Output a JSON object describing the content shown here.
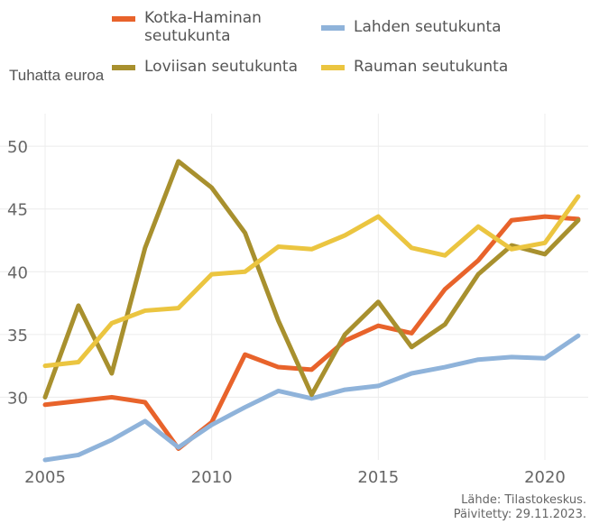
{
  "chart_data": {
    "type": "line",
    "y_label": "Tuhatta euroa",
    "x": [
      2005,
      2006,
      2007,
      2008,
      2009,
      2010,
      2011,
      2012,
      2013,
      2014,
      2015,
      2016,
      2017,
      2018,
      2019,
      2020,
      2021
    ],
    "series": [
      {
        "name": "Kotka-Haminan seutukunta",
        "color": "#e8632b",
        "values": [
          29.4,
          29.7,
          30.0,
          29.6,
          25.9,
          28.0,
          33.4,
          32.4,
          32.2,
          34.5,
          35.7,
          35.1,
          38.6,
          40.9,
          44.1,
          44.4,
          44.2
        ]
      },
      {
        "name": "Lahden seutukunta",
        "color": "#8fb3da",
        "values": [
          25.0,
          25.4,
          26.6,
          28.1,
          26.0,
          27.8,
          29.2,
          30.5,
          29.9,
          30.6,
          30.9,
          31.9,
          32.4,
          33.0,
          33.2,
          33.1,
          34.9
        ]
      },
      {
        "name": "Loviisan seutukunta",
        "color": "#a8902e",
        "values": [
          30.0,
          37.3,
          31.9,
          41.9,
          48.8,
          46.7,
          43.1,
          36.1,
          30.2,
          35.0,
          37.6,
          34.0,
          35.8,
          39.8,
          42.1,
          41.4,
          44.1
        ]
      },
      {
        "name": "Rauman seutukunta",
        "color": "#ebc540",
        "values": [
          32.5,
          32.8,
          35.9,
          36.9,
          37.1,
          39.8,
          40.0,
          42.0,
          41.8,
          42.9,
          44.4,
          41.9,
          41.3,
          43.6,
          41.8,
          42.3,
          46.0
        ]
      }
    ],
    "xlim": [
      2005,
      2021.3
    ],
    "xticks": [
      2005,
      2010,
      2015,
      2020
    ],
    "ylim": [
      25,
      52.6
    ],
    "yticks": [
      30,
      35,
      40,
      45,
      50
    ],
    "grid": true,
    "source": [
      "Lähde: Tilastokeskus.",
      "Päivitetty: 29.11.2023."
    ]
  }
}
